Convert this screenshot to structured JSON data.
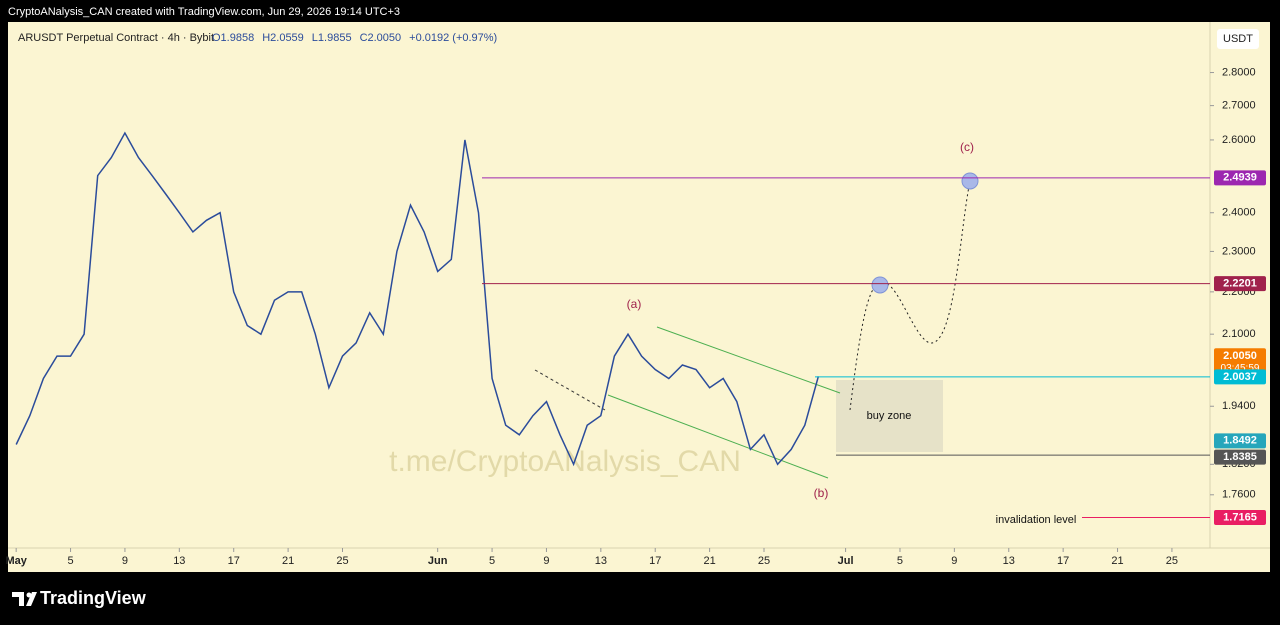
{
  "header": "CryptoANalysis_CAN created with TradingView.com, Jun 29, 2026 19:14 UTC+3",
  "chart_data": {
    "type": "line",
    "title": "ARUSDT Perpetual Contract · 4h · Bybit",
    "ohlc": [
      "O1.9858",
      "H2.0559",
      "L1.9855",
      "C2.0050",
      "+0.0192 (+0.97%)"
    ],
    "currency": "USDT",
    "log_scale": true,
    "x": [
      0,
      1,
      2,
      3,
      4,
      5,
      6,
      7,
      8,
      9,
      10,
      11,
      12,
      13,
      14,
      15,
      16,
      17,
      18,
      19,
      20,
      21,
      22,
      23,
      24,
      25,
      26,
      27,
      28,
      29,
      30,
      31,
      32,
      33,
      34,
      35,
      36,
      37,
      38,
      39,
      40,
      41,
      42,
      43,
      44,
      45,
      46,
      47,
      48,
      49,
      50,
      51,
      52,
      53,
      54,
      55,
      56,
      57,
      58,
      59
    ],
    "series": [
      {
        "color": "#2b4c9b",
        "values": [
          1.86,
          1.92,
          2.0,
          2.05,
          2.05,
          2.1,
          2.5,
          2.55,
          2.62,
          2.55,
          2.5,
          2.45,
          2.4,
          2.35,
          2.38,
          2.4,
          2.2,
          2.12,
          2.1,
          2.18,
          2.2,
          2.2,
          2.1,
          1.98,
          2.05,
          2.08,
          2.15,
          2.1,
          2.3,
          2.42,
          2.35,
          2.25,
          2.28,
          2.6,
          2.4,
          2.0,
          1.9,
          1.88,
          1.92,
          1.95,
          1.88,
          1.82,
          1.9,
          1.92,
          2.05,
          2.1,
          2.05,
          2.02,
          2.0,
          2.03,
          2.02,
          1.98,
          2.0,
          1.95,
          1.85,
          1.88,
          1.82,
          1.85,
          1.9,
          2.005
        ]
      }
    ],
    "xlim": [
      -0.6,
      87.8
    ],
    "xticks": [
      {
        "value": 0,
        "label": "May"
      },
      {
        "value": 4,
        "label": "5"
      },
      {
        "value": 8,
        "label": "9"
      },
      {
        "value": 12,
        "label": "13"
      },
      {
        "value": 16,
        "label": "17"
      },
      {
        "value": 20,
        "label": "21"
      },
      {
        "value": 24,
        "label": "25"
      },
      {
        "value": 31,
        "label": "Jun"
      },
      {
        "value": 35,
        "label": "5"
      },
      {
        "value": 39,
        "label": "9"
      },
      {
        "value": 43,
        "label": "13"
      },
      {
        "value": 47,
        "label": "17"
      },
      {
        "value": 51,
        "label": "21"
      },
      {
        "value": 55,
        "label": "25"
      },
      {
        "value": 61,
        "label": "Jul"
      },
      {
        "value": 65,
        "label": "5"
      },
      {
        "value": 69,
        "label": "9"
      },
      {
        "value": 73,
        "label": "13"
      },
      {
        "value": 77,
        "label": "17"
      },
      {
        "value": 81,
        "label": "21"
      },
      {
        "value": 85,
        "label": "25"
      }
    ],
    "ylim": [
      1.66,
      2.96
    ],
    "yticks": [
      {
        "value": 2.8,
        "label": "2.8000"
      },
      {
        "value": 2.7,
        "label": "2.7000"
      },
      {
        "value": 2.6,
        "label": "2.6000"
      },
      {
        "value": 2.4,
        "label": "2.4000"
      },
      {
        "value": 2.3,
        "label": "2.3000"
      },
      {
        "value": 2.2,
        "label": "2.2000"
      },
      {
        "value": 2.1,
        "label": "2.1000"
      },
      {
        "value": 1.94,
        "label": "1.9400"
      },
      {
        "value": 1.82,
        "label": "1.8200"
      },
      {
        "value": 1.76,
        "label": "1.7600"
      }
    ],
    "levels": [
      {
        "value": 2.4939,
        "color": "#9c27b0"
      },
      {
        "value": 2.2201,
        "color": "#a0224c"
      },
      {
        "value": 2.005,
        "label": "2.0050",
        "color": "#f57c00"
      },
      {
        "value": 2.0037,
        "color": "#00bcd4"
      },
      {
        "value": 1.8492,
        "color": "#26a6bb"
      },
      {
        "value": 1.8385,
        "color": "#555555"
      },
      {
        "value": 1.7165,
        "color": "#e91e63"
      }
    ],
    "countdown": "03:45:59",
    "annotations": [
      "(a)",
      "(b)",
      "(c)",
      "buy zone",
      "invalidation level"
    ],
    "watermark": "t.me/CryptoANalysis_CAN"
  },
  "footer": "TradingView"
}
